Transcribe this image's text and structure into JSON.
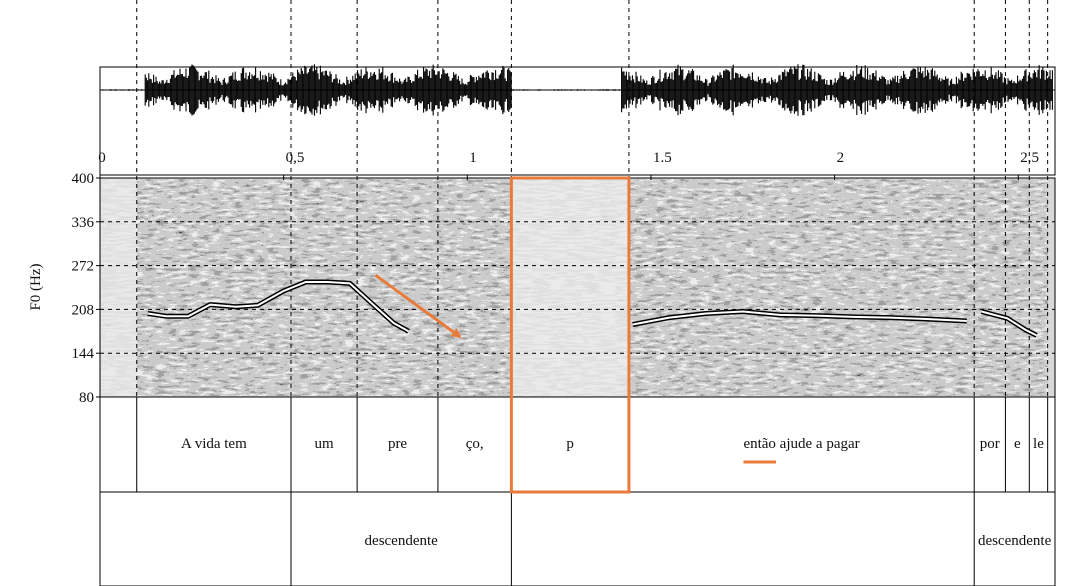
{
  "chart_data": {
    "type": "line",
    "title": "",
    "ylabel": "F0 (Hz)",
    "xlabel": "",
    "xlim": [
      0,
      2.6
    ],
    "ylim": [
      80,
      400
    ],
    "x_ticks": [
      {
        "value": 0,
        "label": "0"
      },
      {
        "value": 0.5,
        "label": "0,5"
      },
      {
        "value": 1,
        "label": "1"
      },
      {
        "value": 1.5,
        "label": "1.5"
      },
      {
        "value": 2,
        "label": "2"
      },
      {
        "value": 2.5,
        "label": "2.5"
      }
    ],
    "y_ticks": [
      80,
      144,
      208,
      272,
      336,
      400
    ],
    "grid": "dashed",
    "f0_segments": [
      [
        [
          0.13,
          202
        ],
        [
          0.18,
          198
        ],
        [
          0.24,
          198
        ],
        [
          0.3,
          215
        ],
        [
          0.37,
          212
        ],
        [
          0.43,
          214
        ],
        [
          0.5,
          235
        ],
        [
          0.56,
          248
        ],
        [
          0.62,
          248
        ],
        [
          0.68,
          246
        ],
        [
          0.75,
          212
        ],
        [
          0.8,
          188
        ],
        [
          0.84,
          176
        ]
      ],
      [
        [
          1.45,
          186
        ],
        [
          1.55,
          196
        ],
        [
          1.65,
          202
        ],
        [
          1.75,
          205
        ],
        [
          1.85,
          200
        ],
        [
          1.95,
          199
        ],
        [
          2.05,
          197
        ],
        [
          2.15,
          196
        ],
        [
          2.25,
          194
        ],
        [
          2.36,
          191
        ]
      ],
      [
        [
          2.4,
          205
        ],
        [
          2.47,
          195
        ],
        [
          2.52,
          178
        ],
        [
          2.55,
          170
        ]
      ]
    ],
    "pause_region": [
      1.12,
      1.44
    ],
    "trend_arrow": {
      "from": [
        0.75,
        258
      ],
      "to": [
        0.98,
        168
      ]
    },
    "tier1": [
      {
        "start": 0.1,
        "end": 0.52,
        "label": "A vida tem"
      },
      {
        "start": 0.52,
        "end": 0.7,
        "label": "um"
      },
      {
        "start": 0.7,
        "end": 0.92,
        "label": "pre"
      },
      {
        "start": 0.92,
        "end": 1.12,
        "label": "ço,"
      },
      {
        "start": 1.12,
        "end": 1.44,
        "label": "p"
      },
      {
        "start": 1.44,
        "end": 2.38,
        "label": "então ajude a pagar"
      },
      {
        "start": 2.38,
        "end": 2.465,
        "label": "por"
      },
      {
        "start": 2.465,
        "end": 2.53,
        "label": "e"
      },
      {
        "start": 2.53,
        "end": 2.58,
        "label": "le"
      }
    ],
    "tier2": [
      {
        "start": 0.0,
        "end": 0.52,
        "label": ""
      },
      {
        "start": 0.52,
        "end": 1.12,
        "label": "descendente"
      },
      {
        "start": 1.12,
        "end": 2.38,
        "label": ""
      },
      {
        "start": 2.38,
        "end": 2.6,
        "label": "descendente"
      }
    ],
    "boundaries": [
      0.1,
      0.52,
      0.7,
      0.92,
      1.12,
      1.44,
      2.38,
      2.465,
      2.53,
      2.58
    ],
    "underlined_word": "então",
    "colors": {
      "highlight": "#E87A3A",
      "contour": "#ffffff",
      "ink": "#000000"
    }
  }
}
